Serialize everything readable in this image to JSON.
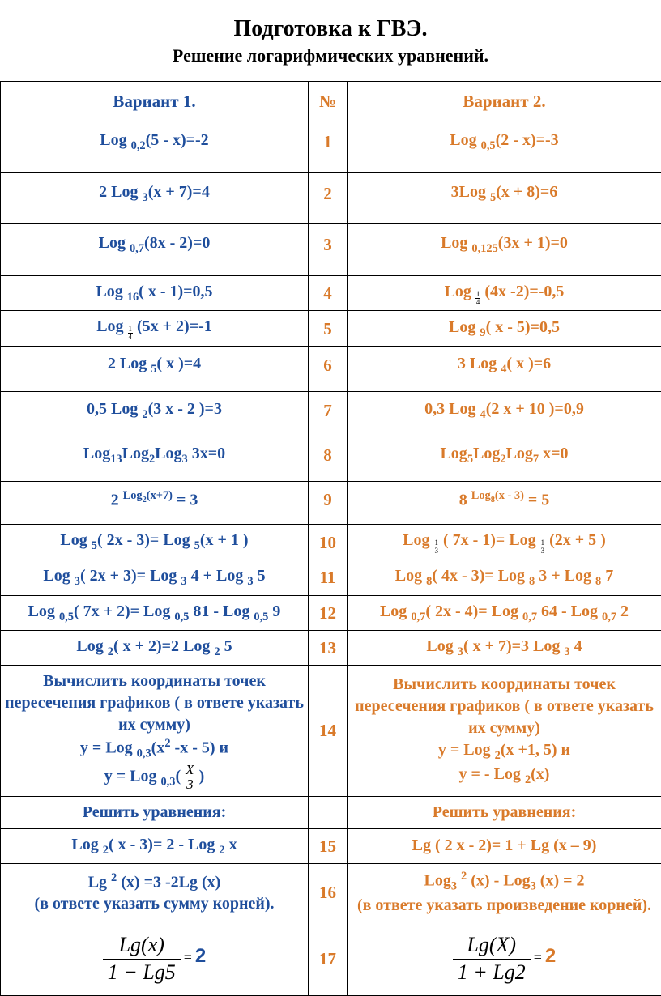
{
  "title": "Подготовка к ГВЭ.",
  "subtitle": "Решение логарифмических уравнений.",
  "colors": {
    "variant1": "#1f4e9c",
    "variant2": "#d97a2a",
    "number": "#d97a2a",
    "text": "#000000",
    "border": "#000000",
    "background": "#ffffff"
  },
  "typography": {
    "family": "Times New Roman",
    "title_size_pt": 21,
    "subtitle_size_pt": 16,
    "cell_size_pt": 15
  },
  "headers": {
    "v1": "Вариант 1.",
    "num": "№",
    "v2": "Вариант 2."
  },
  "rows": [
    {
      "n": "1",
      "v1_html": "Log <sub>0,2</sub>(5 - х)=-2",
      "v2_html": "Log <sub>0,5</sub>(2 - х)=-3"
    },
    {
      "n": "2",
      "v1_html": "2 Log <sub>3</sub>(х + 7)=4",
      "v2_html": "3Log <sub>5</sub>(х + 8)=6"
    },
    {
      "n": "3",
      "v1_html": "Log <sub>0,7</sub>(8х - 2)=0",
      "v2_html": "Log <sub>0,125</sub>(3х + 1)=0"
    },
    {
      "n": "4",
      "v1_html": "Log <sub>16</sub>(  х - 1)=0,5",
      "v2_html": "Log <sub><span class=\"sfrac\"><span class=\"t\">1</span><span class=\"b\">4</span></span></sub> (4х -2)=-0,5"
    },
    {
      "n": "5",
      "v1_html": "Log <sub><span class=\"sfrac\"><span class=\"t\">1</span><span class=\"b\">4</span></span></sub> (5х + 2)=-1",
      "v2_html": "Log <sub>9</sub>(  х - 5)=0,5"
    },
    {
      "n": "6",
      "v1_html": "2 Log <sub>5</sub>( х )=4",
      "v2_html": "3 Log <sub>4</sub>( х )=6"
    },
    {
      "n": "7",
      "v1_html": "0,5 Log <sub>2</sub>(3 х - 2 )=3",
      "v2_html": "0,3 Log <sub>4</sub>(2 х + 10 )=0,9"
    },
    {
      "n": "8",
      "v1_html": "Log<sub>13</sub>Log<sub>2</sub>Log<sub>3</sub> 3х=0",
      "v2_html": "Log<sub>5</sub>Log<sub>2</sub>Log<sub>7</sub> х=0"
    },
    {
      "n": "9",
      "v1_html": "2 <sup>Log<sub>2</sub>(х+7)</sup> = 3",
      "v2_html": "8 <sup>Log<sub>8</sub>(х - 3)</sup> = 5"
    },
    {
      "n": "10",
      "v1_html": "Log <sub>5</sub>( 2х - 3)= Log <sub>5</sub>(х + 1 )",
      "v2_html": "Log <sub><span class=\"sfrac\"><span class=\"t\">1</span><span class=\"b\">3</span></span></sub> ( 7х - 1)= Log <sub><span class=\"sfrac\"><span class=\"t\">1</span><span class=\"b\">3</span></span></sub> (2х + 5 )"
    },
    {
      "n": "11",
      "v1_html": "Log <sub>3</sub>( 2х + 3)= Log <sub>3</sub> 4 + Log <sub>3</sub> 5",
      "v2_html": "Log <sub>8</sub>( 4х - 3)= Log <sub>8</sub> 3 + Log <sub>8</sub> 7"
    },
    {
      "n": "12",
      "v1_html": "Log <sub>0,5</sub>( 7х + 2)= Log <sub>0,5</sub> 81 - Log <sub>0,5</sub> 9",
      "v2_html": "Log <sub>0,7</sub>( 2х - 4)= Log <sub>0,7</sub> 64 - Log <sub>0,7</sub> 2"
    },
    {
      "n": "13",
      "v1_html": "Log <sub>2</sub>( х + 2)=2 Log <sub>2</sub> 5",
      "v2_html": "Log <sub>3</sub>( х + 7)=3 Log <sub>3</sub> 4"
    },
    {
      "n": "14",
      "v1_html": "Вычислить координаты точек пересечения графиков ( в ответе указать их сумму)<br>у = Log <sub>0,3</sub>(х<sup>2</sup> -х - 5) и<br>у = Log <sub>0,3</sub>( <span class=\"sfrac\" style=\"font-size:0.85em;font-style:italic;\"><span class=\"t\">X</span><span class=\"b\">3</span></span> )",
      "v2_html": "Вычислить координаты точек пересечения графиков ( в ответе указать их сумму)<br>у = Log <sub>2</sub>(х +1, 5) и<br>у = - Log <sub>2</sub>(х)"
    },
    {
      "n": "",
      "v1_html": "Решить уравнения:",
      "v2_html": "Решить уравнения:"
    },
    {
      "n": "15",
      "v1_html": "Log <sub>2</sub>( х  - 3)= 2 - Log <sub>2</sub> х",
      "v2_html": "Lg ( 2 х  - 2)= 1 + Lg (х – 9)"
    },
    {
      "n": "16",
      "v1_html": "Lg <sup>2</sup> (х) =3 -2Lg (х)<br>(в ответе указать сумму корней).",
      "v2_html": "Log<sub>3</sub> <sup>2</sup> (х) - Log<sub>3</sub> (х) = 2<br>(в ответе указать произведение корней)."
    },
    {
      "n": "17",
      "v1_formula": {
        "num": "Lg(x)",
        "den": "1 − Lg5",
        "rhs": "2"
      },
      "v2_formula": {
        "num": "Lg(X)",
        "den": "1 + Lg2",
        "rhs": "2"
      }
    }
  ]
}
